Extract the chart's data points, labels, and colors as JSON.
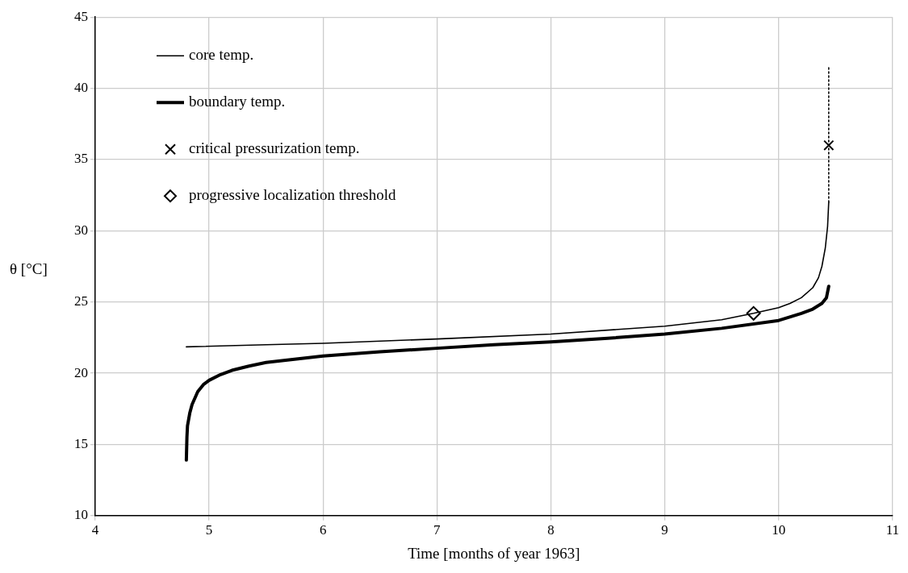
{
  "chart_data": {
    "type": "line",
    "xlabel": "Time [months of year 1963]",
    "ylabel": "θ [°C]",
    "xlim": [
      4,
      11
    ],
    "xticks": [
      4,
      5,
      6,
      7,
      8,
      9,
      10,
      11
    ],
    "ylim": [
      10,
      45
    ],
    "yticks": [
      10,
      15,
      20,
      25,
      30,
      35,
      40,
      45
    ],
    "grid": true,
    "legend": "top left",
    "series": [
      {
        "name": "core temp.",
        "color": "#000000",
        "line_style": "solid",
        "marker": "none",
        "x": [
          4.8,
          5.5,
          6,
          7,
          8,
          9,
          9.5,
          9.78,
          10,
          10.1,
          10.2,
          10.3,
          10.35,
          10.38,
          10.41,
          10.43,
          10.44
        ],
        "values": [
          21.85,
          22.0,
          22.1,
          22.4,
          22.75,
          23.3,
          23.75,
          24.2,
          24.6,
          24.9,
          25.3,
          26.0,
          26.7,
          27.5,
          28.8,
          30.3,
          32
        ]
      },
      {
        "name": "boundary temp.",
        "color": "#000000",
        "line_style": "solid",
        "marker": "none",
        "x": [
          4.8,
          4.805,
          4.81,
          4.83,
          4.85,
          4.9,
          4.95,
          5.0,
          5.1,
          5.2,
          5.35,
          5.5,
          6,
          6.5,
          7,
          7.5,
          8,
          8.5,
          9,
          9.5,
          10,
          10.2,
          10.3,
          10.38,
          10.42,
          10.44
        ],
        "values": [
          13.9,
          15.5,
          16.3,
          17.2,
          17.8,
          18.7,
          19.2,
          19.5,
          19.9,
          20.2,
          20.5,
          20.75,
          21.2,
          21.5,
          21.75,
          22.0,
          22.2,
          22.45,
          22.75,
          23.15,
          23.7,
          24.2,
          24.5,
          24.9,
          25.3,
          26.1
        ]
      },
      {
        "color": "#000000",
        "line_style": "dotted",
        "marker": "none",
        "x": [
          10.44,
          10.44
        ],
        "values": [
          32,
          41.5
        ]
      },
      {
        "name": "critical pressurization temp.",
        "type": "scatter",
        "color": "#000000",
        "marker": "cross",
        "x": [
          10.44
        ],
        "values": [
          36
        ]
      },
      {
        "name": "progressive localization threshold",
        "type": "scatter",
        "color": "#000000",
        "marker": "diamond",
        "x": [
          9.78
        ],
        "values": [
          24.2
        ]
      }
    ]
  }
}
